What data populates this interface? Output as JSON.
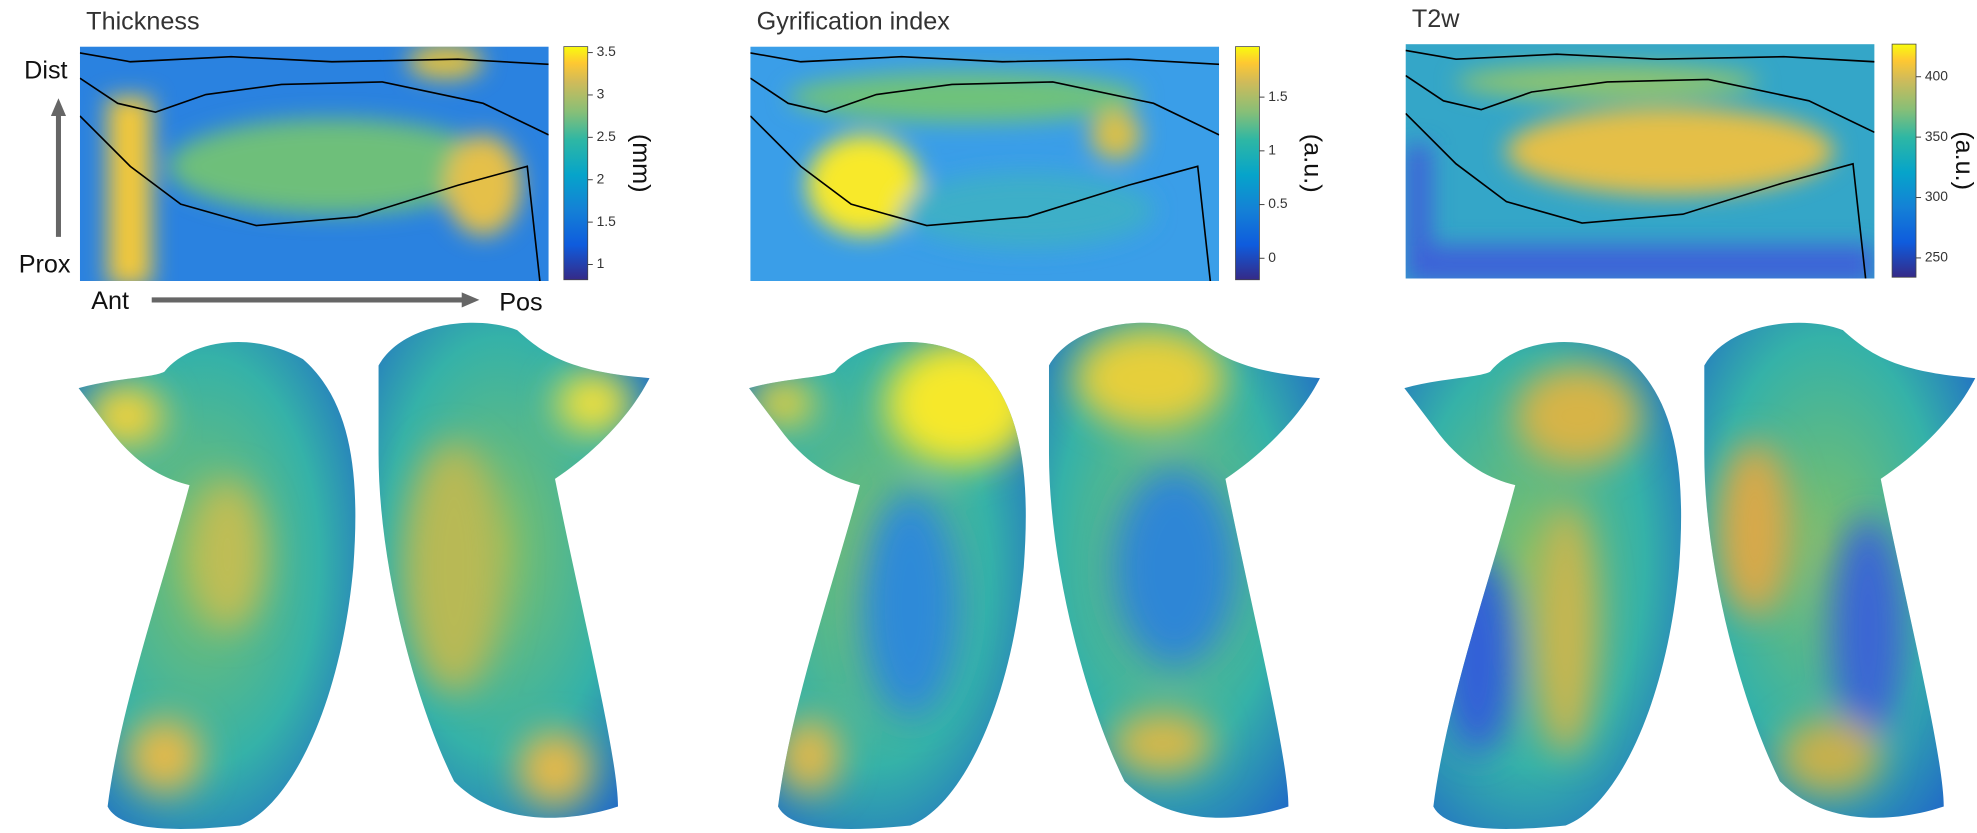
{
  "axes": {
    "distal": "Dist",
    "proximal": "Prox",
    "anterior": "Ant",
    "posterior": "Pos"
  },
  "panels": [
    {
      "title": "Thickness",
      "colorbar": {
        "unit": "(mm)",
        "lim": [
          0.82,
          3.57
        ],
        "ticks": [
          1,
          1.5,
          2,
          2.5,
          3,
          3.5
        ]
      }
    },
    {
      "title": "Gyrification index",
      "colorbar": {
        "unit": "(a.u.)",
        "lim": [
          -0.2,
          1.97
        ],
        "ticks": [
          0,
          0.5,
          1,
          1.5
        ]
      }
    },
    {
      "title": "T2w",
      "colorbar": {
        "unit": "(a.u.)",
        "lim": [
          234,
          427
        ],
        "ticks": [
          250,
          300,
          350,
          400
        ]
      }
    }
  ]
}
